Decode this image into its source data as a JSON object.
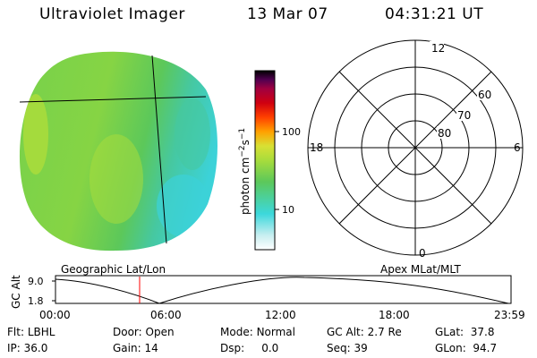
{
  "header": {
    "title": "Ultraviolet Imager",
    "date": "13 Mar 07",
    "time": "04:31:21 UT"
  },
  "image": {
    "label": "Geographic Lat/Lon",
    "colors": {
      "bright": "#a8dc3c",
      "main": "#7ad24a",
      "green": "#5cc85a",
      "teal": "#46c8a0",
      "cyan": "#3cd2d8"
    }
  },
  "colorbar": {
    "label_main": "photon cm",
    "label_sup1": "−2",
    "label_s": "s",
    "label_sup2": "−1",
    "ticks": [
      "100",
      "10"
    ],
    "stops": [
      "#ffffff",
      "#c8eef0",
      "#3cd8dc",
      "#5cc85a",
      "#a8dc3c",
      "#d8e034",
      "#ffa000",
      "#ff4000",
      "#d00010",
      "#a00040",
      "#500050",
      "#000000"
    ]
  },
  "polar": {
    "label": "Apex MLat/MLT",
    "mlt_labels": {
      "top": "12",
      "left": "18",
      "right": "6",
      "bottom": "0"
    },
    "lat_labels": [
      "60",
      "70",
      "80"
    ]
  },
  "timeline": {
    "axis_title": "GC Alt",
    "y_ticks": [
      "9.0",
      "1.8"
    ],
    "x_ticks": [
      "00:00",
      "06:00",
      "12:00",
      "18:00",
      "23:59"
    ],
    "marker_color": "#ff0000"
  },
  "status": [
    [
      {
        "k": "Flt:",
        "v": "LBHL"
      },
      {
        "k": "Door:",
        "v": "Open"
      },
      {
        "k": "Mode:",
        "v": "Normal"
      },
      {
        "k": "GC Alt:",
        "v": "2.7 Re"
      },
      {
        "k": "GLat:",
        "v": "37.8"
      }
    ],
    [
      {
        "k": "IP:",
        "v": "36.0"
      },
      {
        "k": "Gain:",
        "v": "14"
      },
      {
        "k": "Dsp:",
        "v": "0.0"
      },
      {
        "k": "Seq:",
        "v": "39"
      },
      {
        "k": "GLon:",
        "v": "94.7"
      }
    ]
  ]
}
